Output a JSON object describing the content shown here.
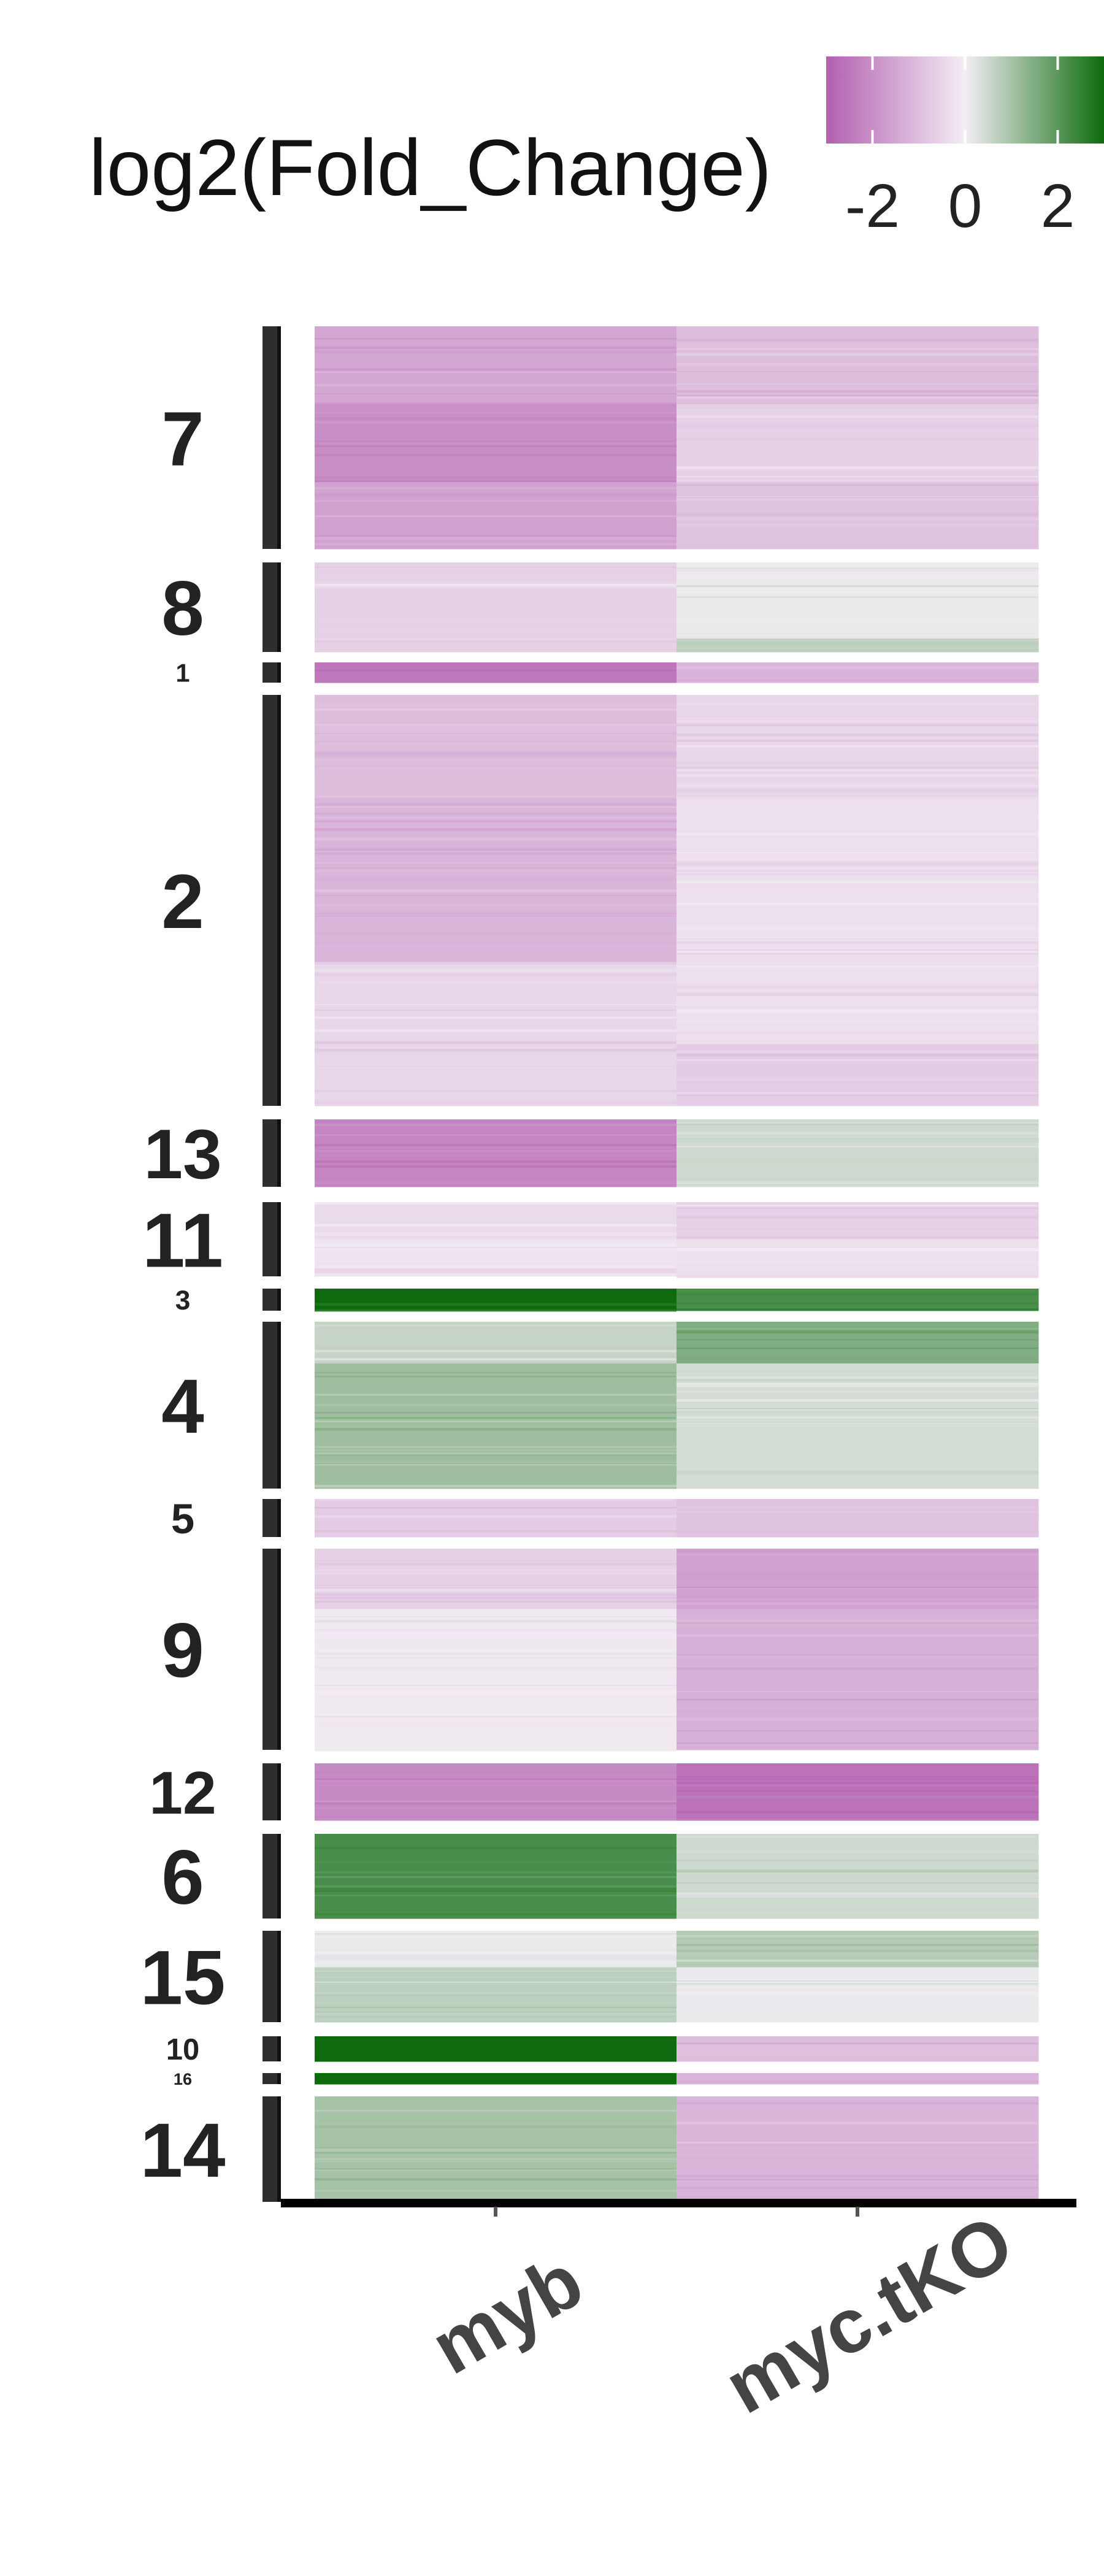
{
  "legend": {
    "title": "log2(Fold_Change)",
    "ticks": [
      "-2",
      "0",
      "2"
    ],
    "colors": {
      "low": "#b35fb0",
      "mid": "#f3eef4",
      "high": "#0d6b0d"
    },
    "range": [
      -3,
      3
    ]
  },
  "chart_data": {
    "type": "heatmap",
    "title": "",
    "xlabel": "",
    "ylabel": "",
    "legend_position": "top-right",
    "columns": [
      "myb",
      "myc.tKO"
    ],
    "cluster_order": [
      "7",
      "8",
      "1",
      "2",
      "13",
      "11",
      "3",
      "4",
      "5",
      "9",
      "12",
      "6",
      "15",
      "10",
      "16",
      "14"
    ],
    "clusters": [
      {
        "label": "7",
        "rows": [
          {
            "frac": 0.35,
            "values": [
              -1.5,
              -1.0
            ]
          },
          {
            "frac": 0.35,
            "values": [
              -2.0,
              -0.6
            ]
          },
          {
            "frac": 0.3,
            "values": [
              -1.6,
              -0.9
            ]
          }
        ]
      },
      {
        "label": "8",
        "rows": [
          {
            "frac": 0.85,
            "values": [
              -0.6,
              0.1
            ]
          },
          {
            "frac": 0.15,
            "values": [
              -0.6,
              0.7
            ]
          }
        ]
      },
      {
        "label": "1",
        "rows": [
          {
            "frac": 1.0,
            "values": [
              -2.5,
              -1.2
            ]
          }
        ]
      },
      {
        "label": "2",
        "rows": [
          {
            "frac": 0.25,
            "values": [
              -1.0,
              -0.5
            ]
          },
          {
            "frac": 0.4,
            "values": [
              -1.2,
              -0.3
            ]
          },
          {
            "frac": 0.2,
            "values": [
              -0.5,
              -0.3
            ]
          },
          {
            "frac": 0.15,
            "values": [
              -0.5,
              -0.7
            ]
          }
        ]
      },
      {
        "label": "13",
        "rows": [
          {
            "frac": 1.0,
            "values": [
              -2.2,
              0.5
            ]
          }
        ]
      },
      {
        "label": "11",
        "rows": [
          {
            "frac": 0.5,
            "values": [
              -0.4,
              -0.6
            ]
          },
          {
            "frac": 0.5,
            "values": [
              -0.2,
              -0.3
            ]
          }
        ]
      },
      {
        "label": "3",
        "rows": [
          {
            "frac": 1.0,
            "values": [
              3.0,
              2.2
            ]
          }
        ]
      },
      {
        "label": "4",
        "rows": [
          {
            "frac": 0.25,
            "values": [
              0.6,
              1.5
            ]
          },
          {
            "frac": 0.75,
            "values": [
              1.1,
              0.4
            ]
          }
        ]
      },
      {
        "label": "5",
        "rows": [
          {
            "frac": 1.0,
            "values": [
              -0.7,
              -0.9
            ]
          }
        ]
      },
      {
        "label": "9",
        "rows": [
          {
            "frac": 0.3,
            "values": [
              -0.6,
              -1.6
            ]
          },
          {
            "frac": 0.7,
            "values": [
              -0.1,
              -1.3
            ]
          }
        ]
      },
      {
        "label": "12",
        "rows": [
          {
            "frac": 1.0,
            "values": [
              -2.1,
              -2.6
            ]
          }
        ]
      },
      {
        "label": "6",
        "rows": [
          {
            "frac": 1.0,
            "values": [
              2.2,
              0.5
            ]
          }
        ]
      },
      {
        "label": "15",
        "rows": [
          {
            "frac": 0.4,
            "values": [
              0.1,
              0.8
            ]
          },
          {
            "frac": 0.6,
            "values": [
              0.7,
              0.1
            ]
          }
        ]
      },
      {
        "label": "10",
        "rows": [
          {
            "frac": 1.0,
            "values": [
              3.2,
              -1.0
            ]
          }
        ]
      },
      {
        "label": "16",
        "rows": [
          {
            "frac": 1.0,
            "values": [
              3.2,
              -1.2
            ]
          }
        ]
      },
      {
        "label": "14",
        "rows": [
          {
            "frac": 1.0,
            "values": [
              1.0,
              -1.2
            ]
          }
        ]
      }
    ]
  }
}
